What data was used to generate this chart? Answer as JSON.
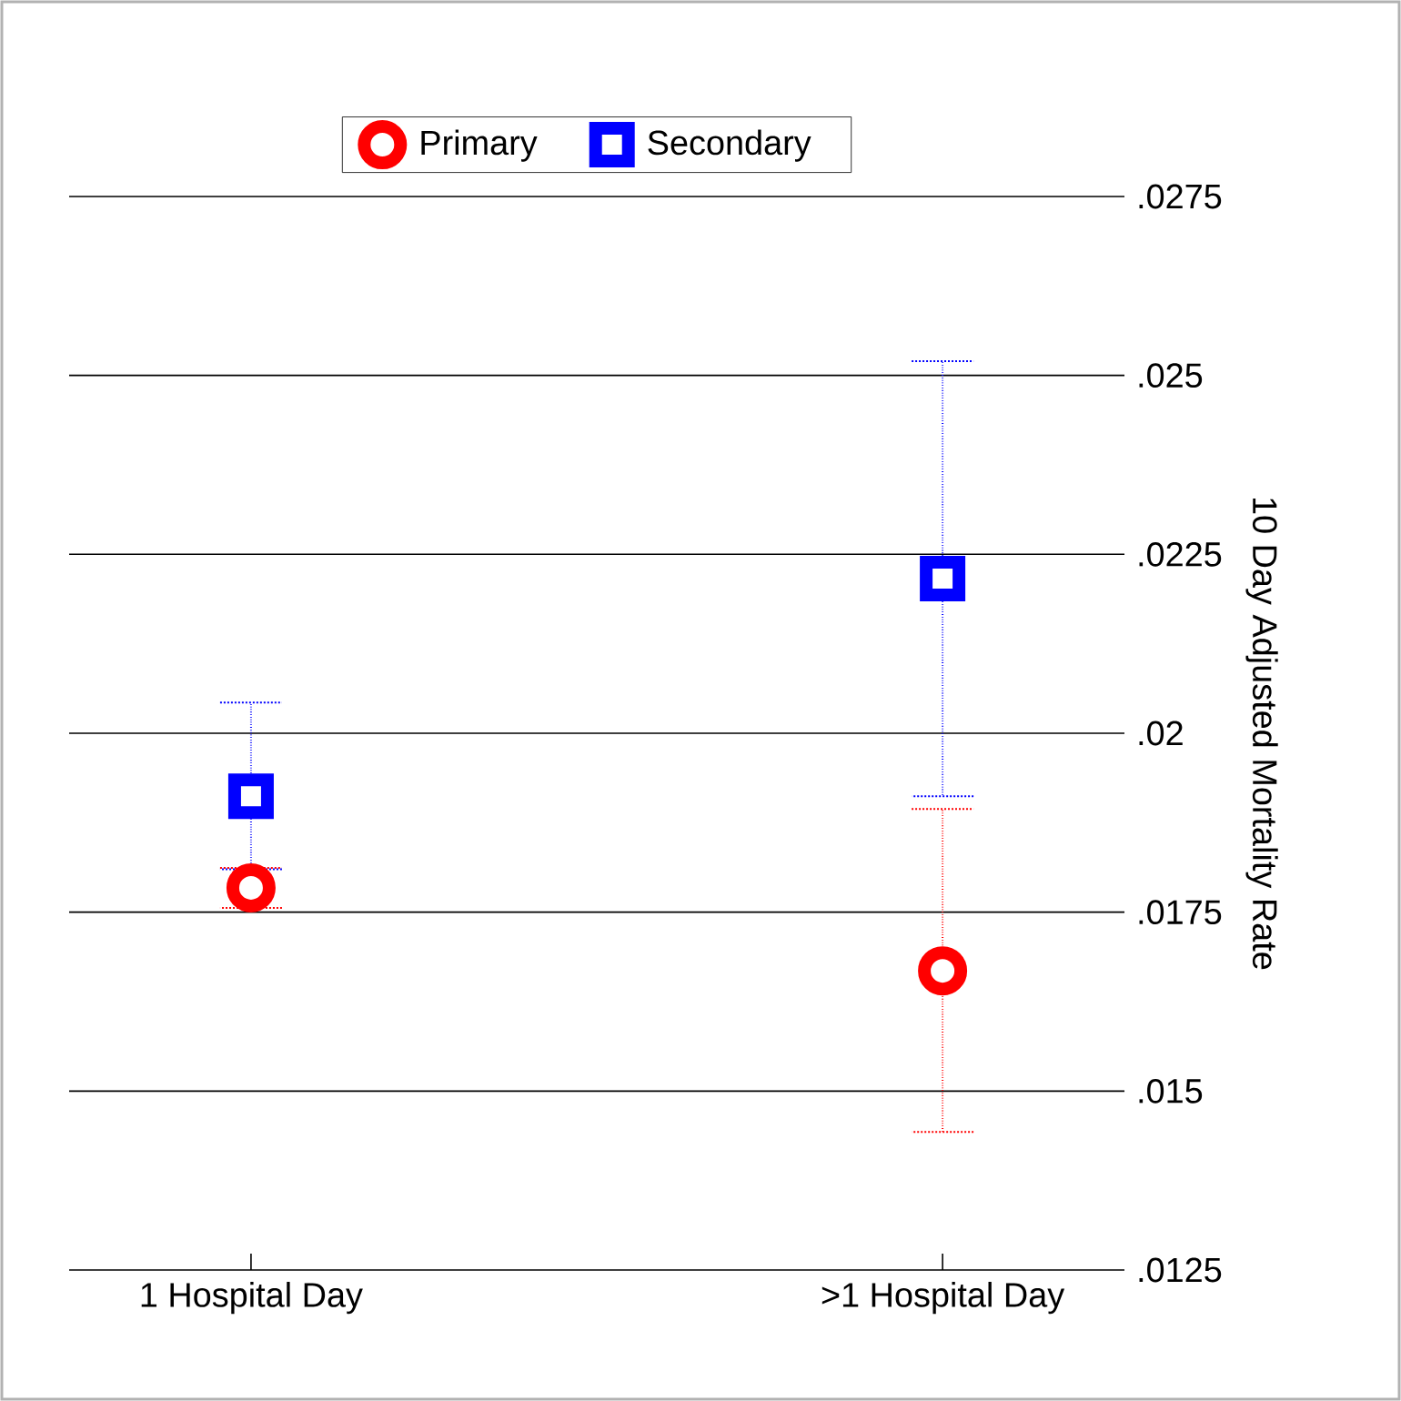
{
  "chart_data": {
    "type": "scatter",
    "ylabel": "10 Day Adjusted Mortality Rate",
    "categories": [
      "1 Hospital Day",
      ">1 Hospital Day"
    ],
    "series": [
      {
        "name": "Primary",
        "color": "#ff0000",
        "marker": "circle",
        "values": [
          0.01784,
          0.01668
        ],
        "errors": [
          [
            0.01756,
            0.01812
          ],
          [
            0.01443,
            0.01894
          ]
        ]
      },
      {
        "name": "Secondary",
        "color": "#0000ff",
        "marker": "square",
        "values": [
          0.01912,
          0.02216
        ],
        "errors": [
          [
            0.0181,
            0.02043
          ],
          [
            0.01912,
            0.0252
          ]
        ]
      }
    ],
    "ylim": [
      0.0125,
      0.0275
    ],
    "yticks": [
      {
        "value": 0.0125,
        "label": ".0125"
      },
      {
        "value": 0.015,
        "label": ".015"
      },
      {
        "value": 0.0175,
        "label": ".0175"
      },
      {
        "value": 0.02,
        "label": ".02"
      },
      {
        "value": 0.0225,
        "label": ".0225"
      },
      {
        "value": 0.025,
        "label": ".025"
      },
      {
        "value": 0.0275,
        "label": ".0275"
      }
    ],
    "grid": "y",
    "legend": "top"
  }
}
